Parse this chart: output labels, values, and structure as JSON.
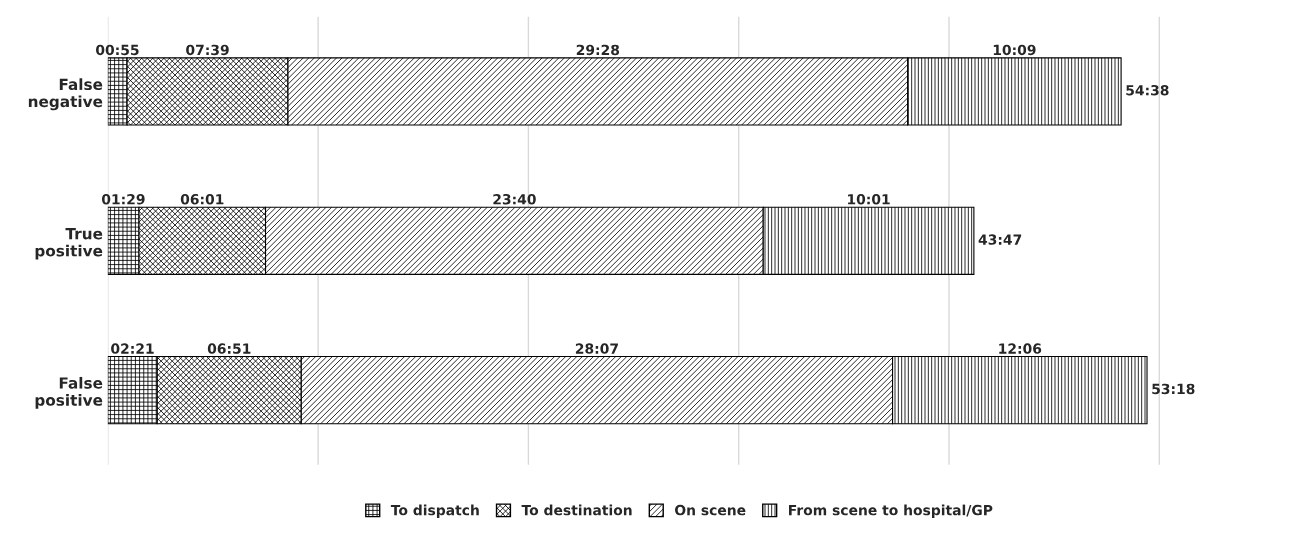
{
  "chart_data": {
    "type": "bar",
    "orientation": "horizontal",
    "stacked": true,
    "categories": [
      "False negative",
      "True positive",
      "False positive"
    ],
    "series": [
      {
        "name": "To dispatch",
        "color": "#000000",
        "values": [
          0.917,
          1.483,
          2.35
        ],
        "value_labels": [
          "00:55",
          "01:29",
          "02:21"
        ]
      },
      {
        "name": "To destination",
        "color": "#000000",
        "values": [
          7.65,
          6.017,
          6.85
        ],
        "value_labels": [
          "07:39",
          "06:01",
          "06:51"
        ]
      },
      {
        "name": "On scene",
        "color": "#000000",
        "values": [
          29.467,
          23.667,
          28.117
        ],
        "value_labels": [
          "29:28",
          "23:40",
          "28:07"
        ]
      },
      {
        "name": "From scene to hospital/GP",
        "color": "#000000",
        "values": [
          10.15,
          10.017,
          12.1
        ],
        "value_labels": [
          "10:09",
          "10:01",
          "12:06"
        ]
      }
    ],
    "annotations": [
      "54:38",
      "43:47",
      "53:18"
    ],
    "grid": "x",
    "legend": "bottom"
  }
}
